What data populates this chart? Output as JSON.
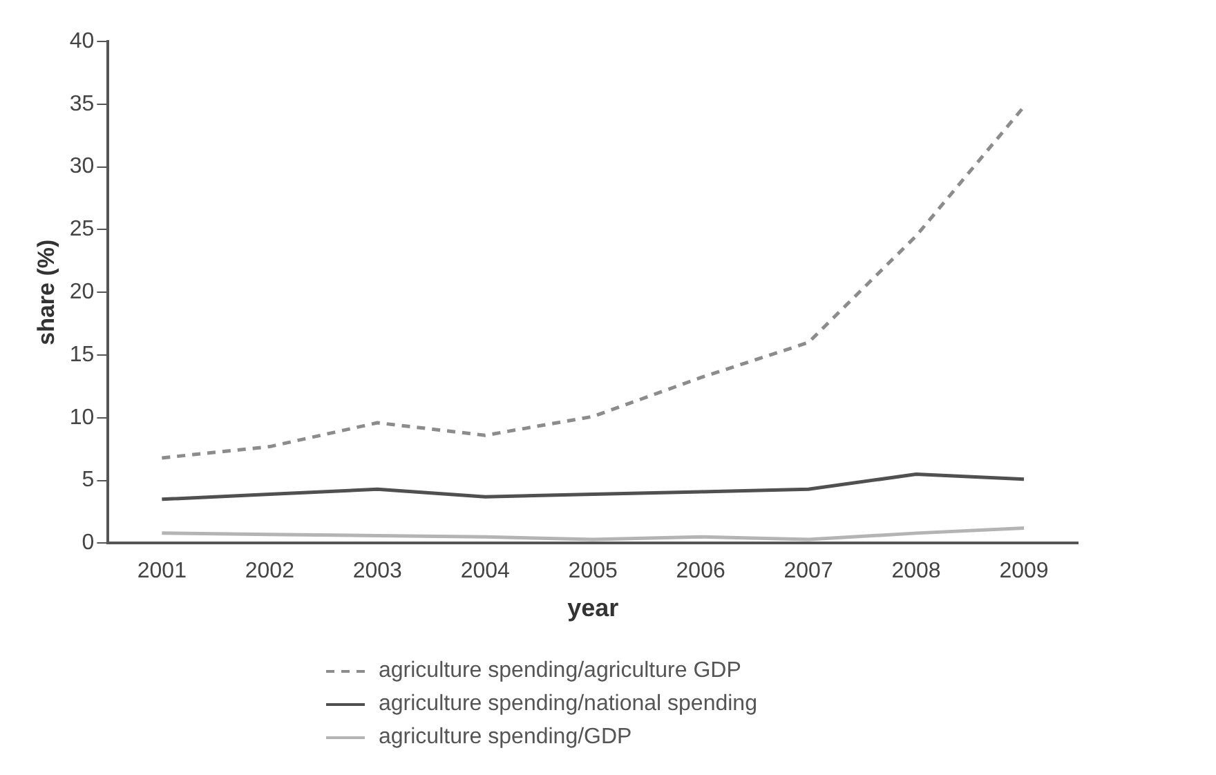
{
  "chart_data": {
    "type": "line",
    "xlabel": "year",
    "ylabel": "share (%)",
    "categories": [
      "2001",
      "2002",
      "2003",
      "2004",
      "2005",
      "2006",
      "2007",
      "2008",
      "2009"
    ],
    "series": [
      {
        "name": "agriculture spending/agriculture GDP",
        "color": "#8c8c8c",
        "line_style": "dashed",
        "values": [
          6.8,
          7.7,
          9.6,
          8.6,
          10.1,
          13.2,
          16,
          24.5,
          34.8
        ]
      },
      {
        "name": "agriculture spending/national spending",
        "color": "#505050",
        "line_style": "solid",
        "values": [
          3.5,
          3.9,
          4.3,
          3.7,
          3.9,
          4.1,
          4.3,
          5.5,
          5.1
        ]
      },
      {
        "name": "agriculture spending/GDP",
        "color": "#b4b4b4",
        "line_style": "solid",
        "values": [
          0.8,
          0.7,
          0.6,
          0.5,
          0.3,
          0.5,
          0.3,
          0.8,
          1.2
        ]
      }
    ],
    "ylim": [
      0,
      40
    ],
    "yticks": [
      0,
      5,
      10,
      15,
      20,
      25,
      30,
      35,
      40
    ],
    "grid": false,
    "legend": "bottom",
    "marker": "none"
  }
}
